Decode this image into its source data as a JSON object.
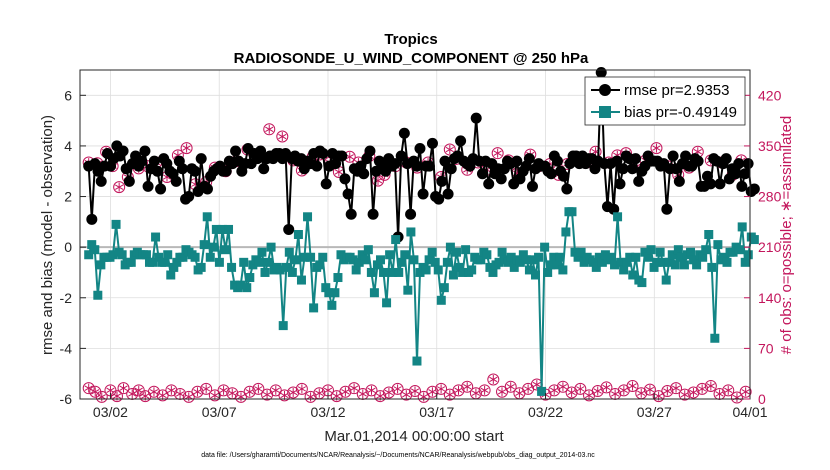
{
  "chart_data": {
    "type": "line",
    "title": "Tropics",
    "subtitle": "RADIOSONDE_U_WIND_COMPONENT @ 250 hPa",
    "xlabel": "Mar.01,2014 00:00:00 start",
    "ylabel_left": "rmse and bias (model - observation)",
    "ylabel_right": "# of obs: o=possible; ∗=assimilated",
    "footnote": "data file: /Users/gharamti/Documents/NCAR/Reanalysis/~/Documents/NCAR/Reanalysis/webpub/obs_diag_output_2014-03.nc",
    "xlim": [
      0.6,
      31.4
    ],
    "ylim_left": [
      -6,
      7
    ],
    "ylim_right": [
      0,
      455
    ],
    "x_ticks": [
      2,
      7,
      12,
      17,
      22,
      27,
      32
    ],
    "x_tick_labels": [
      "03/02",
      "03/07",
      "03/12",
      "03/17",
      "03/22",
      "03/27",
      "04/01"
    ],
    "y_ticks_left": [
      -6,
      -4,
      -2,
      0,
      2,
      4,
      6
    ],
    "y_ticks_right": [
      0,
      70,
      140,
      210,
      280,
      350,
      420
    ],
    "legend": [
      "rmse pr=2.9353",
      "bias pr=-0.49149"
    ],
    "colors": {
      "rmse": "#000000",
      "bias": "#138585",
      "obs": "#c3165c",
      "zero_line": "#b8b8b8"
    },
    "series": [
      {
        "name": "rmse pr=2.9353",
        "values": [
          3.2,
          1.1,
          3.3,
          3.0,
          2.6,
          3.2,
          3.7,
          3.2,
          3.5,
          4.0,
          3.6,
          3.8,
          3.1,
          2.6,
          3.3,
          3.6,
          3.2,
          3.4,
          3.8,
          2.4,
          3.1,
          3.4,
          3.0,
          2.3,
          3.5,
          3.3,
          3.0,
          2.9,
          2.6,
          3.4,
          3.1,
          1.9,
          2.0,
          3.1,
          3.0,
          2.2,
          3.5,
          2.4,
          2.3,
          2.8,
          3.0,
          3.1,
          3.2,
          3.0,
          3.0,
          3.4,
          3.3,
          3.8,
          3.4,
          3.0,
          3.3,
          3.9,
          3.3,
          3.7,
          3.5,
          3.8,
          3.1,
          3.5,
          3.6,
          3.5,
          3.7,
          3.7,
          3.5,
          3.7,
          0.7,
          3.5,
          3.6,
          3.4,
          3.5,
          3.1,
          3.4,
          3.3,
          3.7,
          3.2,
          3.8,
          3.7,
          2.5,
          3.2,
          3.7,
          3.3,
          3.6,
          3.6,
          2.7,
          2.1,
          1.3,
          3.1,
          3.0,
          3.2,
          2.9,
          3.5,
          3.8,
          1.3,
          3.0,
          3.4,
          3.2,
          3.0,
          3.5,
          3.2,
          3.3,
          0.4,
          3.6,
          4.5,
          3.3,
          1.3,
          3.4,
          3.2,
          3.9,
          2.1,
          3.2,
          3.2,
          4.1,
          2.0,
          1.9,
          2.6,
          3.4,
          2.1,
          3.1,
          3.5,
          3.6,
          4.2,
          3.4,
          3.3,
          3.2,
          3.5,
          5.1,
          3.4,
          2.9,
          3.4,
          2.5,
          3.3,
          2.9,
          3.1,
          2.7,
          3.1,
          3.4,
          3.3,
          2.5,
          3.4,
          2.7,
          3.0,
          3.2,
          3.5,
          2.4,
          3.1,
          3.3,
          3.2,
          3.2,
          3.0,
          2.9,
          3.6,
          3.4,
          3.0,
          2.8,
          2.3,
          3.3,
          3.6,
          3.6,
          3.3,
          3.6,
          3.3,
          3.5,
          3.5,
          3.1,
          3.4,
          6.9,
          3.3,
          1.6,
          3.3,
          1.5,
          3.4,
          2.5,
          3.1,
          3.6,
          3.5,
          3.1,
          3.5,
          2.6,
          3.0,
          3.2,
          3.6,
          3.4,
          3.4,
          3.4,
          3.2,
          3.3,
          1.5,
          3.1,
          3.6,
          3.1,
          2.6,
          3.3,
          3.6,
          3.2,
          3.2,
          3.5,
          3.4,
          2.4,
          2.4,
          2.8,
          2.5,
          3.5,
          3.4,
          2.5,
          3.3,
          3.5,
          2.7,
          3.1,
          2.9,
          3.3,
          2.4,
          2.9,
          3.3,
          2.2,
          2.3
        ],
        "marker": "filled-circle"
      },
      {
        "name": "bias pr=-0.49149",
        "values": [
          -0.3,
          0.1,
          -0.1,
          -1.9,
          -0.7,
          -0.4,
          -0.4,
          -0.4,
          -0.3,
          0.9,
          -0.2,
          -0.3,
          -0.7,
          -0.6,
          -0.6,
          -0.3,
          -0.2,
          -0.3,
          -0.3,
          -0.3,
          -0.6,
          -0.6,
          0.4,
          -0.4,
          -0.6,
          -0.6,
          -0.3,
          -1.1,
          -0.8,
          -0.6,
          -0.4,
          -0.4,
          -0.1,
          -0.2,
          -0.3,
          -0.4,
          -0.9,
          -0.8,
          0.1,
          1.2,
          -0.4,
          0.0,
          0.7,
          -0.6,
          0.7,
          -0.1,
          0.7,
          -0.8,
          -1.5,
          -1.6,
          -1.5,
          -0.6,
          -1.6,
          -1.2,
          -0.7,
          -0.5,
          -0.6,
          -0.2,
          -1.0,
          -0.6,
          0.0,
          -0.9,
          -0.8,
          -0.9,
          -3.1,
          -0.8,
          -0.2,
          -1.0,
          -0.5,
          0.5,
          -1.3,
          -0.4,
          1.2,
          -0.4,
          -2.4,
          -0.8,
          -0.7,
          -0.4,
          -1.6,
          -1.8,
          -2.3,
          -1.8,
          -1.2,
          -0.3,
          -0.5,
          -0.4,
          -0.4,
          -0.5,
          -0.9,
          -0.6,
          -0.3,
          -0.5,
          -0.1,
          -1.0,
          -1.8,
          -0.7,
          -0.5,
          -1.0,
          -2.2,
          -0.3,
          -1.0,
          0.3,
          -1.0,
          -0.6,
          -0.3,
          -1.7,
          0.6,
          -0.5,
          -4.5,
          -1.0,
          -0.8,
          -0.9,
          -0.5,
          -0.2,
          -0.6,
          -0.9,
          -2.1,
          -1.6,
          -0.6,
          0.0,
          -1.1,
          -0.2,
          -0.8,
          -1.0,
          -0.1,
          -1.0,
          -0.9,
          -0.4,
          -0.5,
          -0.5,
          -0.2,
          -0.3,
          -0.8,
          -1.0,
          -0.7,
          -0.6,
          -0.2,
          -0.5,
          -0.6,
          -0.4,
          -0.8,
          -0.5,
          -0.6,
          -0.3,
          -0.5,
          -0.9,
          -0.5,
          -1.1,
          -0.4,
          -5.7,
          0.0,
          -1.0,
          -0.7,
          -0.4,
          -0.7,
          -0.4,
          -0.9,
          0.6,
          1.4,
          1.4,
          -0.2,
          -0.4,
          -0.2,
          -0.6,
          -0.4,
          -0.5,
          -0.6,
          -0.8,
          -0.4,
          -0.6,
          -0.3,
          -0.5,
          -0.4,
          -0.7,
          1.2,
          -0.6,
          -0.9,
          -0.6,
          -0.4,
          -1.1,
          -0.4,
          -1.3,
          -1.4,
          -0.2,
          -0.4,
          -0.1,
          -0.8,
          -0.6,
          -0.2,
          -0.6,
          -1.3,
          -0.6,
          -0.3,
          -0.7,
          -0.1,
          -0.4,
          -0.7,
          -0.3,
          -0.2,
          -0.5,
          -0.7,
          -0.3,
          -0.4,
          -0.1,
          0.5,
          -0.8,
          -3.6,
          0.1,
          -0.5,
          -0.4,
          -0.6,
          -0.2,
          -0.2,
          0.0,
          -0.1,
          0.8,
          -0.6,
          -0.3,
          0.4,
          0.3
        ],
        "marker": "filled-square"
      }
    ],
    "obs_possible": [
      320,
      330,
      340,
      325,
      320,
      315,
      300,
      310,
      330,
      340,
      335,
      315,
      320,
      325,
      310,
      310,
      325,
      330,
      345,
      320,
      305,
      290,
      295,
      300,
      310,
      320,
      290,
      300,
      320,
      325,
      310,
      300,
      330,
      340,
      320,
      315,
      325,
      310,
      340,
      335,
      330,
      350,
      345,
      330,
      320,
      310,
      300,
      345,
      330,
      340,
      320,
      315,
      325,
      300,
      330,
      320,
      310,
      330,
      350,
      345,
      335,
      340,
      320,
      315,
      370,
      310,
      320,
      330,
      325,
      320,
      340,
      350,
      330,
      320,
      330,
      310,
      320,
      330,
      315,
      325,
      320,
      340,
      330,
      320,
      310,
      320,
      300,
      330,
      320,
      340,
      325,
      320,
      310,
      330,
      315,
      320,
      300,
      330,
      340,
      320,
      315,
      330,
      340,
      320,
      310,
      325,
      320,
      330,
      300,
      340,
      320,
      310,
      330,
      320,
      325,
      320,
      310,
      300,
      315,
      330,
      340,
      320,
      330,
      310,
      320,
      325,
      320,
      315,
      320,
      330,
      310,
      320,
      330,
      340,
      325,
      320,
      310,
      320,
      330,
      320,
      310,
      315,
      320,
      330,
      340,
      310,
      320,
      325,
      330,
      330,
      320,
      310,
      320,
      330,
      325,
      320,
      315,
      320,
      330,
      340,
      325,
      320,
      310,
      320,
      330,
      335,
      320,
      310,
      320,
      330,
      325,
      320,
      330,
      340,
      330,
      320,
      310,
      325,
      320,
      330,
      340,
      325,
      320,
      310,
      300,
      330,
      330,
      320,
      310,
      300,
      320,
      330,
      340,
      320,
      310,
      330,
      320,
      300,
      330,
      320,
      310,
      300,
      320,
      310,
      330,
      325,
      310,
      300,
      320,
      310
    ],
    "obs_possible_pts": [
      [
        1.0,
        327
      ],
      [
        1.4,
        326
      ],
      [
        1.8,
        342
      ],
      [
        2.1,
        322
      ],
      [
        2.4,
        293
      ],
      [
        2.8,
        307
      ],
      [
        3.3,
        319
      ],
      [
        3.7,
        322
      ],
      [
        4.1,
        327
      ],
      [
        4.6,
        307
      ],
      [
        5.1,
        337
      ],
      [
        5.5,
        347
      ],
      [
        5.9,
        297
      ],
      [
        6.4,
        300
      ],
      [
        6.8,
        320
      ],
      [
        7.3,
        315
      ],
      [
        7.8,
        329
      ],
      [
        8.3,
        345
      ],
      [
        8.8,
        337
      ],
      [
        9.3,
        373
      ],
      [
        9.9,
        363
      ],
      [
        10.4,
        330
      ],
      [
        10.8,
        316
      ],
      [
        11.3,
        335
      ],
      [
        11.6,
        338
      ],
      [
        12.1,
        327
      ],
      [
        12.5,
        314
      ],
      [
        13.0,
        335
      ],
      [
        13.4,
        327
      ],
      [
        13.9,
        336
      ],
      [
        14.3,
        302
      ],
      [
        14.6,
        310
      ],
      [
        15.1,
        322
      ],
      [
        15.6,
        327
      ],
      [
        16.1,
        320
      ],
      [
        16.6,
        327
      ],
      [
        17.2,
        307
      ],
      [
        17.6,
        345
      ],
      [
        17.9,
        332
      ],
      [
        18.4,
        317
      ],
      [
        18.9,
        327
      ],
      [
        19.3,
        317
      ],
      [
        19.8,
        340
      ],
      [
        20.3,
        330
      ],
      [
        20.7,
        312
      ],
      [
        21.3,
        338
      ],
      [
        21.7,
        322
      ],
      [
        22.2,
        325
      ],
      [
        22.6,
        310
      ],
      [
        23.0,
        325
      ],
      [
        23.4,
        335
      ],
      [
        23.9,
        327
      ],
      [
        24.3,
        342
      ],
      [
        24.9,
        327
      ],
      [
        25.3,
        337
      ],
      [
        25.7,
        340
      ],
      [
        26.2,
        322
      ],
      [
        26.6,
        330
      ],
      [
        27.1,
        347
      ],
      [
        27.6,
        322
      ],
      [
        28.1,
        310
      ],
      [
        28.6,
        320
      ],
      [
        29.0,
        342
      ],
      [
        29.6,
        330
      ],
      [
        30.1,
        327
      ],
      [
        30.6,
        310
      ],
      [
        31.0,
        330
      ]
    ],
    "obs_low_pts": [
      [
        1.0,
        15
      ],
      [
        1.3,
        10
      ],
      [
        1.6,
        3
      ],
      [
        2.0,
        12
      ],
      [
        2.3,
        4
      ],
      [
        2.6,
        15
      ],
      [
        3.0,
        7
      ],
      [
        3.3,
        12
      ],
      [
        3.6,
        4
      ],
      [
        4.0,
        10
      ],
      [
        4.4,
        5
      ],
      [
        4.8,
        12
      ],
      [
        5.2,
        7
      ],
      [
        5.6,
        3
      ],
      [
        6.0,
        10
      ],
      [
        6.4,
        14
      ],
      [
        6.8,
        5
      ],
      [
        7.2,
        12
      ],
      [
        7.6,
        8
      ],
      [
        8.0,
        3
      ],
      [
        8.4,
        10
      ],
      [
        8.8,
        14
      ],
      [
        9.2,
        6
      ],
      [
        9.6,
        12
      ],
      [
        10.0,
        5
      ],
      [
        10.4,
        9
      ],
      [
        10.8,
        14
      ],
      [
        11.2,
        3
      ],
      [
        11.6,
        8
      ],
      [
        12.0,
        12
      ],
      [
        12.4,
        4
      ],
      [
        12.8,
        10
      ],
      [
        13.2,
        15
      ],
      [
        13.6,
        7
      ],
      [
        14.0,
        12
      ],
      [
        14.4,
        4
      ],
      [
        14.8,
        9
      ],
      [
        15.2,
        14
      ],
      [
        15.6,
        6
      ],
      [
        16.0,
        11
      ],
      [
        16.4,
        3
      ],
      [
        16.8,
        10
      ],
      [
        17.2,
        14
      ],
      [
        17.6,
        6
      ],
      [
        18.0,
        12
      ],
      [
        18.4,
        17
      ],
      [
        18.8,
        8
      ],
      [
        19.2,
        12
      ],
      [
        19.6,
        27
      ],
      [
        20.0,
        10
      ],
      [
        20.4,
        17
      ],
      [
        20.8,
        8
      ],
      [
        21.2,
        14
      ],
      [
        21.6,
        20
      ],
      [
        22.0,
        6
      ],
      [
        22.4,
        12
      ],
      [
        22.8,
        17
      ],
      [
        23.2,
        9
      ],
      [
        23.6,
        14
      ],
      [
        24.0,
        5
      ],
      [
        24.4,
        11
      ],
      [
        24.8,
        16
      ],
      [
        25.2,
        7
      ],
      [
        25.6,
        12
      ],
      [
        26.0,
        18
      ],
      [
        26.4,
        8
      ],
      [
        26.8,
        13
      ],
      [
        27.2,
        4
      ],
      [
        27.6,
        11
      ],
      [
        28.0,
        15
      ],
      [
        28.4,
        6
      ],
      [
        28.8,
        9
      ],
      [
        29.2,
        14
      ],
      [
        29.6,
        18
      ],
      [
        30.0,
        7
      ],
      [
        30.4,
        12
      ],
      [
        30.8,
        2
      ],
      [
        31.2,
        10
      ]
    ],
    "obs_assim_pts": [
      [
        1.0,
        327
      ],
      [
        1.4,
        326
      ],
      [
        1.8,
        342
      ],
      [
        2.1,
        322
      ],
      [
        2.4,
        293
      ],
      [
        2.8,
        307
      ],
      [
        3.3,
        319
      ],
      [
        3.7,
        322
      ],
      [
        4.1,
        327
      ],
      [
        4.6,
        307
      ],
      [
        5.1,
        337
      ],
      [
        5.5,
        347
      ],
      [
        5.9,
        297
      ],
      [
        6.4,
        300
      ],
      [
        6.8,
        320
      ],
      [
        7.3,
        315
      ],
      [
        7.8,
        329
      ],
      [
        8.3,
        345
      ],
      [
        8.8,
        337
      ],
      [
        9.3,
        373
      ],
      [
        9.9,
        363
      ],
      [
        10.4,
        330
      ],
      [
        10.8,
        316
      ],
      [
        11.3,
        335
      ],
      [
        11.6,
        338
      ],
      [
        12.1,
        327
      ],
      [
        12.5,
        314
      ],
      [
        13.0,
        335
      ],
      [
        13.4,
        327
      ],
      [
        13.9,
        336
      ],
      [
        14.3,
        302
      ],
      [
        14.6,
        310
      ],
      [
        15.1,
        322
      ],
      [
        15.6,
        327
      ],
      [
        16.1,
        320
      ],
      [
        16.6,
        327
      ],
      [
        17.2,
        307
      ],
      [
        17.6,
        345
      ],
      [
        17.9,
        332
      ],
      [
        18.4,
        317
      ],
      [
        18.9,
        327
      ],
      [
        19.3,
        317
      ],
      [
        19.8,
        340
      ],
      [
        20.3,
        330
      ],
      [
        20.7,
        312
      ],
      [
        21.3,
        338
      ],
      [
        21.7,
        322
      ],
      [
        22.2,
        325
      ],
      [
        22.6,
        310
      ],
      [
        23.0,
        325
      ],
      [
        23.4,
        335
      ],
      [
        23.9,
        327
      ],
      [
        24.3,
        342
      ],
      [
        24.9,
        327
      ],
      [
        25.3,
        337
      ],
      [
        25.7,
        340
      ],
      [
        26.2,
        322
      ],
      [
        26.6,
        330
      ],
      [
        27.1,
        347
      ],
      [
        27.6,
        322
      ],
      [
        28.1,
        310
      ],
      [
        28.6,
        320
      ],
      [
        29.0,
        342
      ],
      [
        29.6,
        330
      ],
      [
        30.1,
        327
      ],
      [
        30.6,
        310
      ],
      [
        31.0,
        330
      ]
    ]
  }
}
